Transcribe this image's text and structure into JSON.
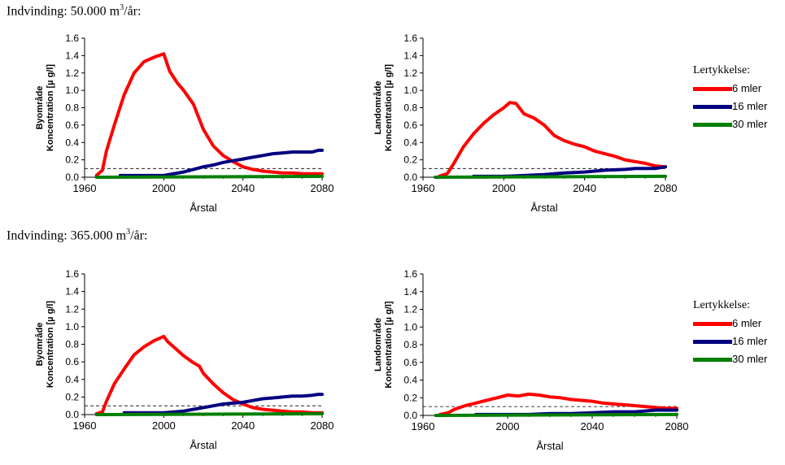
{
  "sections": [
    {
      "prefix": "Indvinding:  ",
      "amount": "50.000 m",
      "sup": "3",
      "suffix": "/år:"
    },
    {
      "prefix": "Indvinding: ",
      "amount": "365.000 m",
      "sup": "3",
      "suffix": "/år:"
    }
  ],
  "legends": [
    {
      "title": "Lertykkelse:",
      "items": [
        {
          "label": "6 mler",
          "color": "#ff0000"
        },
        {
          "label": "16 mler",
          "color": "#000080"
        },
        {
          "label": "30 mler",
          "color": "#008000"
        }
      ]
    },
    {
      "title": "Lertykkelse:",
      "items": [
        {
          "label": "6 mler",
          "color": "#ff0000"
        },
        {
          "label": "16 mler",
          "color": "#000080"
        },
        {
          "label": "30 mler",
          "color": "#008000"
        }
      ]
    }
  ],
  "chart_data": [
    {
      "type": "line",
      "ylabel_line1": "Byområde",
      "ylabel_line2": "Koncentration [µ g/l]",
      "xlabel": "Årstal",
      "xlim": [
        1960,
        2080
      ],
      "ylim": [
        0,
        1.6
      ],
      "xticks": [
        "1960",
        "2000",
        "2040",
        "2080"
      ],
      "yticks": [
        "0.0",
        "0.2",
        "0.4",
        "0.6",
        "0.8",
        "1.0",
        "1.2",
        "1.4",
        "1.6"
      ],
      "threshold": 0.1,
      "series": [
        {
          "name": "6 mler",
          "color": "#ff0000",
          "x": [
            1966,
            1969,
            1971,
            1975,
            1980,
            1985,
            1990,
            1995,
            2000,
            2003,
            2007,
            2010,
            2015,
            2020,
            2025,
            2030,
            2035,
            2040,
            2045,
            2050,
            2055,
            2060,
            2065,
            2070,
            2075,
            2080
          ],
          "y": [
            0.02,
            0.08,
            0.3,
            0.6,
            0.95,
            1.2,
            1.33,
            1.38,
            1.42,
            1.22,
            1.08,
            1.0,
            0.84,
            0.55,
            0.36,
            0.25,
            0.18,
            0.12,
            0.09,
            0.07,
            0.06,
            0.05,
            0.05,
            0.04,
            0.04,
            0.04
          ]
        },
        {
          "name": "16 mler",
          "color": "#000080",
          "x": [
            1978,
            1990,
            2000,
            2005,
            2010,
            2015,
            2020,
            2025,
            2030,
            2035,
            2040,
            2045,
            2050,
            2055,
            2060,
            2065,
            2070,
            2075,
            2078,
            2080
          ],
          "y": [
            0.02,
            0.02,
            0.02,
            0.04,
            0.06,
            0.09,
            0.12,
            0.14,
            0.17,
            0.19,
            0.21,
            0.23,
            0.25,
            0.27,
            0.28,
            0.29,
            0.29,
            0.29,
            0.31,
            0.31
          ]
        },
        {
          "name": "30 mler",
          "color": "#008000",
          "x": [
            1966,
            2080
          ],
          "y": [
            0.0,
            0.01
          ]
        }
      ]
    },
    {
      "type": "line",
      "ylabel_line1": "Landområde",
      "ylabel_line2": "Koncentration [µ g/l]",
      "xlabel": "Årstal",
      "xlim": [
        1960,
        2080
      ],
      "ylim": [
        0,
        1.6
      ],
      "xticks": [
        "1960",
        "2000",
        "2040",
        "2080"
      ],
      "yticks": [
        "0.0",
        "0.2",
        "0.4",
        "0.6",
        "0.8",
        "1.0",
        "1.2",
        "1.4",
        "1.6"
      ],
      "threshold": 0.1,
      "series": [
        {
          "name": "6 mler",
          "color": "#ff0000",
          "x": [
            1968,
            1972,
            1975,
            1980,
            1985,
            1990,
            1995,
            2000,
            2003,
            2006,
            2010,
            2015,
            2020,
            2025,
            2030,
            2035,
            2040,
            2045,
            2050,
            2055,
            2060,
            2065,
            2070,
            2075,
            2080
          ],
          "y": [
            0.01,
            0.04,
            0.15,
            0.35,
            0.5,
            0.62,
            0.72,
            0.8,
            0.86,
            0.85,
            0.73,
            0.68,
            0.6,
            0.48,
            0.42,
            0.38,
            0.35,
            0.3,
            0.27,
            0.24,
            0.2,
            0.18,
            0.16,
            0.13,
            0.12
          ]
        },
        {
          "name": "16 mler",
          "color": "#000080",
          "x": [
            1985,
            2000,
            2010,
            2020,
            2025,
            2030,
            2040,
            2045,
            2050,
            2060,
            2065,
            2070,
            2075,
            2080
          ],
          "y": [
            0.01,
            0.01,
            0.02,
            0.03,
            0.04,
            0.05,
            0.06,
            0.07,
            0.08,
            0.09,
            0.1,
            0.1,
            0.1,
            0.12
          ]
        },
        {
          "name": "30 mler",
          "color": "#008000",
          "x": [
            1966,
            2080
          ],
          "y": [
            0.0,
            0.01
          ]
        }
      ]
    },
    {
      "type": "line",
      "ylabel_line1": "Byområde",
      "ylabel_line2": "Koncentration [µ g/l]",
      "xlabel": "Årstal",
      "xlim": [
        1960,
        2080
      ],
      "ylim": [
        0,
        1.6
      ],
      "xticks": [
        "1960",
        "2000",
        "2040",
        "2080"
      ],
      "yticks": [
        "0.0",
        "0.2",
        "0.4",
        "0.6",
        "0.8",
        "1.0",
        "1.2",
        "1.4",
        "1.6"
      ],
      "threshold": 0.1,
      "series": [
        {
          "name": "6 mler",
          "color": "#ff0000",
          "x": [
            1966,
            1969,
            1971,
            1975,
            1980,
            1985,
            1990,
            1995,
            2000,
            2002,
            2005,
            2010,
            2015,
            2018,
            2020,
            2025,
            2030,
            2035,
            2040,
            2045,
            2050,
            2055,
            2060,
            2065,
            2070,
            2075,
            2080
          ],
          "y": [
            0.01,
            0.03,
            0.15,
            0.35,
            0.52,
            0.68,
            0.77,
            0.84,
            0.89,
            0.83,
            0.77,
            0.67,
            0.59,
            0.55,
            0.47,
            0.35,
            0.25,
            0.17,
            0.12,
            0.08,
            0.06,
            0.05,
            0.04,
            0.03,
            0.03,
            0.02,
            0.02
          ]
        },
        {
          "name": "16 mler",
          "color": "#000080",
          "x": [
            1980,
            2000,
            2005,
            2010,
            2015,
            2020,
            2025,
            2030,
            2035,
            2040,
            2045,
            2050,
            2055,
            2060,
            2065,
            2070,
            2075,
            2078,
            2080
          ],
          "y": [
            0.02,
            0.02,
            0.03,
            0.04,
            0.06,
            0.08,
            0.1,
            0.12,
            0.13,
            0.14,
            0.16,
            0.18,
            0.19,
            0.2,
            0.21,
            0.21,
            0.22,
            0.23,
            0.23
          ]
        },
        {
          "name": "30 mler",
          "color": "#008000",
          "x": [
            1966,
            2080
          ],
          "y": [
            0.0,
            0.01
          ]
        }
      ]
    },
    {
      "type": "line",
      "ylabel_line1": "Landområde",
      "ylabel_line2": "Koncentration [µ g/l]",
      "xlabel": "Årstal",
      "xlim": [
        1960,
        2080
      ],
      "ylim": [
        0,
        1.6
      ],
      "xticks": [
        "1960",
        "2000",
        "2040",
        "2080"
      ],
      "yticks": [
        "0.0",
        "0.2",
        "0.4",
        "0.6",
        "0.8",
        "1.0",
        "1.2",
        "1.4",
        "1.6"
      ],
      "threshold": 0.1,
      "series": [
        {
          "name": "6 mler",
          "color": "#ff0000",
          "x": [
            1968,
            1972,
            1975,
            1980,
            1985,
            1990,
            1995,
            2000,
            2005,
            2010,
            2015,
            2020,
            2025,
            2030,
            2035,
            2040,
            2045,
            2050,
            2055,
            2060,
            2065,
            2070,
            2075,
            2080
          ],
          "y": [
            0.01,
            0.03,
            0.07,
            0.11,
            0.14,
            0.17,
            0.2,
            0.23,
            0.22,
            0.24,
            0.23,
            0.21,
            0.2,
            0.18,
            0.17,
            0.16,
            0.14,
            0.13,
            0.12,
            0.11,
            0.1,
            0.09,
            0.08,
            0.08
          ]
        },
        {
          "name": "16 mler",
          "color": "#000080",
          "x": [
            1985,
            2000,
            2010,
            2020,
            2030,
            2040,
            2050,
            2060,
            2065,
            2070,
            2075,
            2080
          ],
          "y": [
            0.01,
            0.01,
            0.01,
            0.02,
            0.02,
            0.03,
            0.04,
            0.04,
            0.05,
            0.06,
            0.06,
            0.06
          ]
        },
        {
          "name": "30 mler",
          "color": "#008000",
          "x": [
            1966,
            2080
          ],
          "y": [
            0.0,
            0.01
          ]
        }
      ]
    }
  ]
}
